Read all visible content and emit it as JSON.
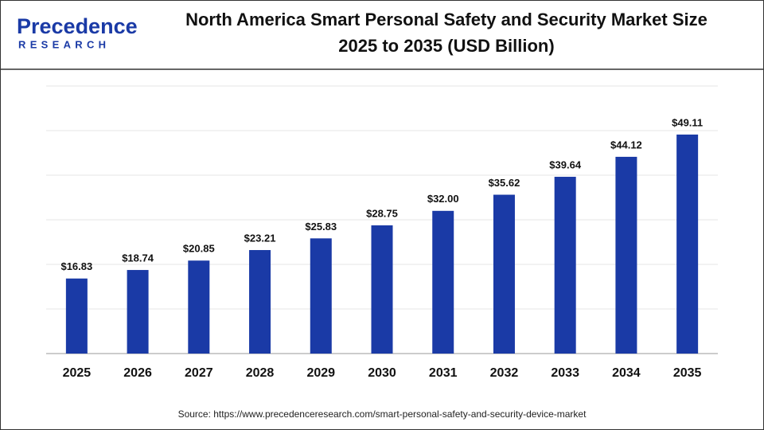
{
  "logo": {
    "name": "Precedence",
    "tagline": "RESEARCH"
  },
  "chart_data": {
    "type": "bar",
    "title": [
      "North America Smart Personal Safety and Security Market Size",
      "2025 to 2035 (USD Billion)"
    ],
    "categories": [
      "2025",
      "2026",
      "2027",
      "2028",
      "2029",
      "2030",
      "2031",
      "2032",
      "2033",
      "2034",
      "2035"
    ],
    "values": [
      16.83,
      18.74,
      20.85,
      23.21,
      25.83,
      28.75,
      32.0,
      35.62,
      39.64,
      44.12,
      49.11
    ],
    "value_labels": [
      "$16.83",
      "$18.74",
      "$20.85",
      "$23.21",
      "$25.83",
      "$28.75",
      "$32.00",
      "$35.62",
      "$39.64",
      "$44.12",
      "$49.11"
    ],
    "color": "#1a3aa6",
    "ylim": [
      0,
      60
    ],
    "yticks": [
      0,
      10,
      20,
      30,
      40,
      50,
      60
    ],
    "grid": true,
    "source": "Source: https://www.precedenceresearch.com/smart-personal-safety-and-security-device-market"
  }
}
